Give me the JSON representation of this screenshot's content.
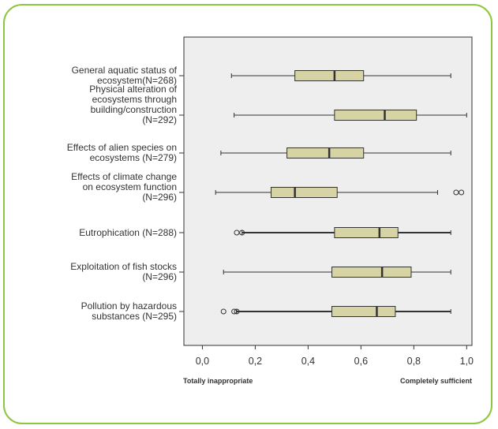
{
  "colors": {
    "frame_border": "#8dc63f",
    "plot_bg": "#eeeeee",
    "box_fill": "#d6d3a4",
    "line": "#333333"
  },
  "chart_data": {
    "type": "boxplot",
    "orientation": "horizontal",
    "xlim": [
      -0.07,
      1.02
    ],
    "x_ticks": [
      "0,0",
      "0,2",
      "0,4",
      "0,6",
      "0,8",
      "1,0"
    ],
    "x_tick_values": [
      0,
      0.2,
      0.4,
      0.6,
      0.8,
      1.0
    ],
    "x_end_labels": {
      "left": "Totally inappropriate",
      "right": "Completely sufficient"
    },
    "grid": false,
    "series": [
      {
        "label_lines": [
          "General aquatic status of",
          "ecosystem(N=268)"
        ],
        "min": 0.11,
        "q1": 0.35,
        "median": 0.5,
        "q3": 0.61,
        "max": 0.94,
        "outliers": []
      },
      {
        "label_lines": [
          "Physical alteration of",
          "ecosystems through",
          "building/construction",
          "(N=292)"
        ],
        "min": 0.12,
        "q1": 0.5,
        "median": 0.69,
        "q3": 0.81,
        "max": 1.0,
        "outliers": []
      },
      {
        "label_lines": [
          "Effects of alien species on",
          "ecosystems (N=279)"
        ],
        "min": 0.07,
        "q1": 0.32,
        "median": 0.48,
        "q3": 0.61,
        "max": 0.94,
        "outliers": []
      },
      {
        "label_lines": [
          "Effects of climate change",
          "on ecosystem function",
          "(N=296)"
        ],
        "min": 0.05,
        "q1": 0.26,
        "median": 0.35,
        "q3": 0.51,
        "max": 0.89,
        "outliers": [
          0.96,
          0.98
        ]
      },
      {
        "label_lines": [
          "Eutrophication (N=288)"
        ],
        "min": 0.15,
        "q1": 0.5,
        "median": 0.67,
        "q3": 0.74,
        "max": 0.94,
        "outliers": [
          0.13,
          0.15
        ]
      },
      {
        "label_lines": [
          "Exploitation of fish stocks",
          "(N=296)"
        ],
        "min": 0.08,
        "q1": 0.49,
        "median": 0.68,
        "q3": 0.79,
        "max": 0.94,
        "outliers": []
      },
      {
        "label_lines": [
          "Pollution by hazardous",
          "substances (N=295)"
        ],
        "min": 0.13,
        "q1": 0.49,
        "median": 0.66,
        "q3": 0.73,
        "max": 0.94,
        "outliers": [
          0.08,
          0.12,
          0.13
        ]
      }
    ]
  }
}
